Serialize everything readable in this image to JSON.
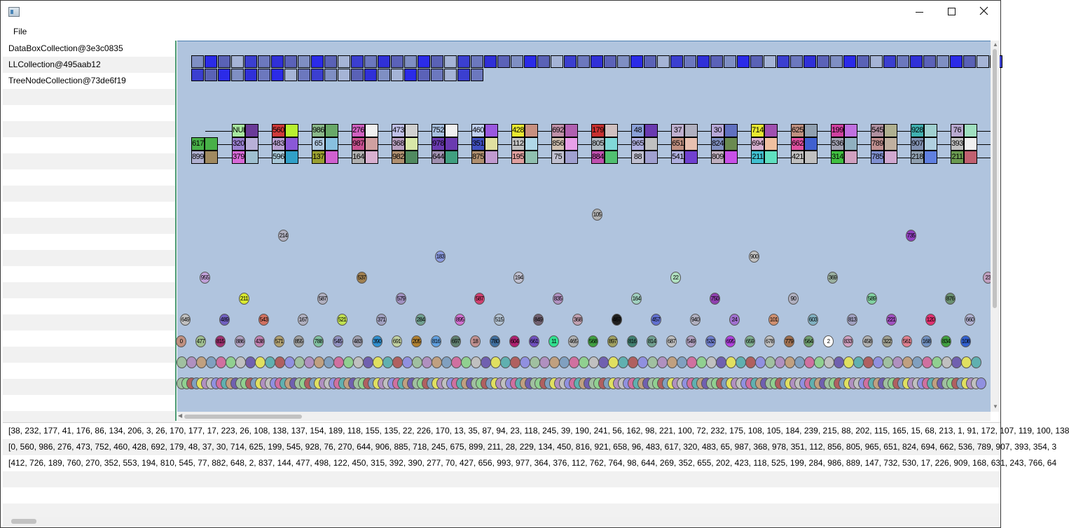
{
  "window": {
    "minimize_glyph": "—",
    "maximize_glyph": "☐",
    "close_glyph": "✕"
  },
  "menu": {
    "file_label": "File"
  },
  "collections": [
    "DataBoxCollection@3e3c0835",
    "LLCollection@495aab12",
    "TreeNodeCollection@73de6f19"
  ],
  "output_lines": [
    "[38, 232, 177, 41, 176, 86, 134, 206, 3, 26, 170, 177, 17, 223, 26, 108, 138, 137, 154, 189, 118, 155, 135, 22, 226, 170, 13, 35, 87, 94, 23, 118, 245, 39, 190, 241, 56, 162, 98, 221, 100, 72, 232, 175, 108, 105, 184, 239, 215, 88, 202, 115, 165, 15, 68, 213, 1, 91, 172, 107, 119, 100, 138",
    "[0, 560, 986, 276, 473, 752, 460, 428, 692, 179, 48, 37, 30, 714, 625, 199, 545, 928, 76, 270, 644, 906, 885, 718, 245, 675, 899, 211, 28, 229, 134, 450, 816, 921, 658, 96, 483, 617, 320, 483, 65, 987, 368, 978, 351, 112, 856, 805, 965, 651, 824, 694, 662, 536, 789, 907, 393, 354, 3",
    "[412, 726, 189, 760, 270, 352, 553, 194, 810, 545, 77, 882, 648, 2, 837, 144, 477, 498, 122, 450, 315, 392, 390, 277, 70, 427, 656, 993, 977, 364, 376, 112, 762, 764, 98, 644, 269, 352, 655, 202, 423, 118, 525, 199, 284, 986, 889, 147, 732, 530, 17, 226, 909, 168, 631, 243, 766, 64"
  ],
  "databoxes": {
    "row1_colors": [
      "#7f8fc3",
      "#2b2be8",
      "#5a62b6",
      "#a5b4d6",
      "#3b3fd0",
      "#6c78be",
      "#3030d8",
      "#5b62b8",
      "#7f8fc3",
      "#2b2be8",
      "#5a62b6",
      "#a5b4d6",
      "#3b3fd0",
      "#6c78be",
      "#3030d8",
      "#5b62b8",
      "#7f8fc3",
      "#2b2be8",
      "#5a62b6",
      "#a5b4d6",
      "#3b3fd0",
      "#6c78be",
      "#3030d8",
      "#5b62b8",
      "#7f8fc3",
      "#2b2be8",
      "#5a62b6",
      "#a5b4d6",
      "#3b3fd0",
      "#6c78be",
      "#3030d8",
      "#5b62b8",
      "#7f8fc3",
      "#2b2be8",
      "#5a62b6",
      "#a5b4d6",
      "#3b3fd0",
      "#6c78be",
      "#3030d8",
      "#5b62b8",
      "#7f8fc3",
      "#2b2be8",
      "#5a62b6",
      "#a5b4d6",
      "#3b3fd0",
      "#6c78be",
      "#3030d8",
      "#5b62b8",
      "#7f8fc3",
      "#2b2be8",
      "#5a62b6",
      "#a5b4d6",
      "#3b3fd0",
      "#6c78be",
      "#3030d8",
      "#5b62b8",
      "#7f8fc3",
      "#2b2be8",
      "#5a62b6",
      "#a5b4d6",
      "#3b3fd0"
    ],
    "row2_colors": [
      "#3b3fd0",
      "#5a62b6",
      "#2b2be8",
      "#7f8fc3",
      "#3030d8",
      "#6c78be",
      "#2b2be8",
      "#a5b4d6",
      "#6c78be",
      "#3b3fd0",
      "#7f8fc3",
      "#a5b4d6",
      "#5a62b6",
      "#3030d8",
      "#7f8fc3",
      "#a5b4d6",
      "#2b2be8",
      "#5b62b8",
      "#6c78be",
      "#a5b4d6",
      "#3b3fd0",
      "#6c78be"
    ]
  },
  "ll_nodes": [
    {
      "top": "NUL",
      "mid": "320",
      "bot": "379",
      "c": [
        "#a8e8a0",
        "#6a3a98",
        "#9a7fd0",
        "#b8b0d8",
        "#d86ad8",
        "#9fc0d0"
      ]
    },
    {
      "top": "560",
      "mid": "483",
      "bot": "596",
      "c": [
        "#d03a3a",
        "#b8f030",
        "#b8a0d0",
        "#8a58d8",
        "#a8c8d8",
        "#30a0c8"
      ]
    },
    {
      "top": "986",
      "mid": "65",
      "bot": "137",
      "c": [
        "#8ab88a",
        "#68a868",
        "#b0c8e0",
        "#88c0e0",
        "#9aa030",
        "#d060d0"
      ]
    },
    {
      "top": "276",
      "mid": "987",
      "bot": "164",
      "c": [
        "#d060c0",
        "#f0f0f0",
        "#c85090",
        "#d0a0a0",
        "#b0b0b0",
        "#d8b0d0"
      ]
    },
    {
      "top": "473",
      "mid": "368",
      "bot": "982",
      "c": [
        "#c0c0e8",
        "#d0d0d0",
        "#b8a0c0",
        "#d8e8a8",
        "#b09070",
        "#508a60"
      ]
    },
    {
      "top": "752",
      "mid": "978",
      "bot": "644",
      "c": [
        "#a8c0e0",
        "#f0f0f0",
        "#6a3ab0",
        "#6a3ab0",
        "#a090b0",
        "#40a080"
      ]
    },
    {
      "top": "460",
      "mid": "351",
      "bot": "875",
      "c": [
        "#c0d0f0",
        "#9a58e0",
        "#4050c0",
        "#e0e0a0",
        "#b09070",
        "#c09ad0"
      ]
    },
    {
      "top": "428",
      "mid": "112",
      "bot": "195",
      "c": [
        "#e8e830",
        "#c89080",
        "#c0c0c0",
        "#b0d8e8",
        "#e0a0a0",
        "#90c0b0"
      ]
    },
    {
      "top": "692",
      "mid": "856",
      "bot": "75",
      "c": [
        "#c090a8",
        "#b060b0",
        "#d0c0b0",
        "#e8a0e8",
        "#c0c0d0",
        "#a0a0d0"
      ]
    },
    {
      "top": "179",
      "mid": "805",
      "bot": "884",
      "c": [
        "#c83030",
        "#d0c0c0",
        "#b0b8c0",
        "#80d8d8",
        "#c050b0",
        "#50c070"
      ]
    },
    {
      "top": "48",
      "mid": "965",
      "bot": "88",
      "c": [
        "#8aa0d8",
        "#6a3ab0",
        "#b0b0e0",
        "#c0c0c0",
        "#c0c0d0",
        "#a0a0d0"
      ]
    },
    {
      "top": "37",
      "mid": "651",
      "bot": "541",
      "c": [
        "#c0b0d0",
        "#b0b0c0",
        "#c09080",
        "#e8c0b0",
        "#b0b0e0",
        "#7040d0"
      ]
    },
    {
      "top": "30",
      "mid": "824",
      "bot": "809",
      "c": [
        "#b8a8d8",
        "#6070c0",
        "#8090c0",
        "#6a8a50",
        "#c0b0c0",
        "#c850e8"
      ]
    },
    {
      "top": "714",
      "mid": "694",
      "bot": "211",
      "c": [
        "#e8e830",
        "#a050b0",
        "#d8b0d0",
        "#f0c0a0",
        "#40c0d0",
        "#60e0c0"
      ]
    },
    {
      "top": "625",
      "mid": "662",
      "bot": "421",
      "c": [
        "#c09080",
        "#90a0b0",
        "#e050a0",
        "#4060d0",
        "#c0c0c0",
        "#c0c0c0"
      ]
    },
    {
      "top": "199",
      "mid": "536",
      "bot": "314",
      "c": [
        "#d040a0",
        "#c070e0",
        "#a0a0b0",
        "#90b0c0",
        "#40c040",
        "#d0a0c0"
      ]
    },
    {
      "top": "545",
      "mid": "789",
      "bot": "785",
      "c": [
        "#b090a0",
        "#b0b090",
        "#c09090",
        "#c0b0a0",
        "#8090d0",
        "#d0a8d0"
      ]
    },
    {
      "top": "928",
      "mid": "907",
      "bot": "218",
      "c": [
        "#40b0b0",
        "#a0d0d0",
        "#8090b0",
        "#b0d0e0",
        "#90a0b0",
        "#6080e0"
      ]
    },
    {
      "top": "76",
      "mid": "393",
      "bot": "211",
      "c": [
        "#b8a8d0",
        "#a0e0c0",
        "#c0c0c0",
        "#f0f0f0",
        "#6a9a50",
        "#c06070"
      ]
    }
  ],
  "extra_node": {
    "mid": "617",
    "bot": "899",
    "c": [
      "#48b048",
      "#48b048",
      "#b0b0d0",
      "#a08a60"
    ]
  },
  "tree_levels": [
    [
      [
        "105",
        "#b0b0b0",
        851,
        305
      ],
      [
        "214",
        "#b0b0c0",
        403,
        335
      ],
      [
        "735",
        "#9040c0",
        1299,
        335
      ]
    ],
    [
      [
        "183",
        "#8a9ae0",
        627,
        365
      ],
      [
        "900",
        "#c0c0c0",
        1075,
        365
      ]
    ],
    [
      [
        "955",
        "#c0a0d8",
        291,
        395
      ],
      [
        "537",
        "#a08050",
        515,
        395
      ],
      [
        "194",
        "#c0c0d0",
        739,
        395
      ],
      [
        "22",
        "#b0e0c0",
        963,
        395
      ],
      [
        "369",
        "#9ab0a0",
        1187,
        395
      ],
      [
        "23",
        "#c0a0c0",
        1409,
        395
      ]
    ],
    [
      [
        "211",
        "#d8e830",
        347,
        425
      ],
      [
        "587",
        "#b0b0c0",
        459,
        425
      ],
      [
        "579",
        "#a090c0",
        571,
        425
      ],
      [
        "587",
        "#d04070",
        683,
        425
      ],
      [
        "835",
        "#b090c0",
        795,
        425
      ],
      [
        "164",
        "#a0d0c0",
        907,
        425
      ],
      [
        "750",
        "#9040b0",
        1019,
        425
      ],
      [
        "90",
        "#b0b0c0",
        1131,
        425
      ],
      [
        "589",
        "#80d0a0",
        1243,
        425
      ],
      [
        "876",
        "#6a9070",
        1355,
        425
      ]
    ],
    [
      [
        "649",
        "#c0c0c0",
        263,
        455
      ],
      [
        "489",
        "#7060c0",
        319,
        455
      ],
      [
        "543",
        "#d07060",
        375,
        455
      ],
      [
        "167",
        "#b0b0c0",
        431,
        455
      ],
      [
        "521",
        "#c0e050",
        487,
        455
      ],
      [
        "371",
        "#a0a0c0",
        543,
        455
      ],
      [
        "284",
        "#70a090",
        599,
        455
      ],
      [
        "895",
        "#d070d0",
        655,
        455
      ],
      [
        "515",
        "#b0c0d0",
        711,
        455
      ],
      [
        "849",
        "#706070",
        767,
        455
      ],
      [
        "368",
        "#c0a0b0",
        823,
        455
      ],
      [
        "467",
        "#202020",
        879,
        455
      ],
      [
        "457",
        "#6070d0",
        935,
        455
      ],
      [
        "940",
        "#b0b0c0",
        991,
        455
      ],
      [
        "24",
        "#a070d0",
        1047,
        455
      ],
      [
        "101",
        "#d09070",
        1103,
        455
      ],
      [
        "603",
        "#80b0c0",
        1159,
        455
      ],
      [
        "813",
        "#a0a0c0",
        1215,
        455
      ],
      [
        "221",
        "#a050c0",
        1271,
        455
      ],
      [
        "120",
        "#e03070",
        1327,
        455
      ],
      [
        "660",
        "#b0b0d0",
        1383,
        455
      ]
    ]
  ],
  "tree_row6": [
    "0",
    "477",
    "815",
    "886",
    "438",
    "571",
    "855",
    "788",
    "545",
    "483",
    "390",
    "691",
    "205",
    "816",
    "697",
    "18",
    "780",
    "604",
    "661",
    "11",
    "465",
    "568",
    "897",
    "816",
    "814",
    "687",
    "549",
    "532",
    "695",
    "659",
    "678",
    "779",
    "564",
    "2",
    "833",
    "458",
    "322",
    "561",
    "168",
    "834",
    "108"
  ],
  "tree_row6_colors": [
    "#c09080",
    "#a0c090",
    "#a03070",
    "#b0a0c0",
    "#c080b0",
    "#b0a070",
    "#a0a0a0",
    "#80c0a0",
    "#9090c0",
    "#a0a0b0",
    "#3090d0",
    "#c0d0a0",
    "#b08030",
    "#60a0e0",
    "#608070",
    "#c09090",
    "#4070a0",
    "#b02070",
    "#7050c0",
    "#30e090",
    "#b0b0b0",
    "#40a040",
    "#a0a060",
    "#408070",
    "#70a090",
    "#c0c0c0",
    "#b0a0c0",
    "#7080d0",
    "#b040e0",
    "#80b090",
    "#c0c0c0",
    "#a07050",
    "#70a070",
    "#ffffff",
    "#d0a0c0",
    "#b0b0b0",
    "#a0a090",
    "#e08090",
    "#7090c0",
    "#40a040",
    "#3060d0"
  ]
}
